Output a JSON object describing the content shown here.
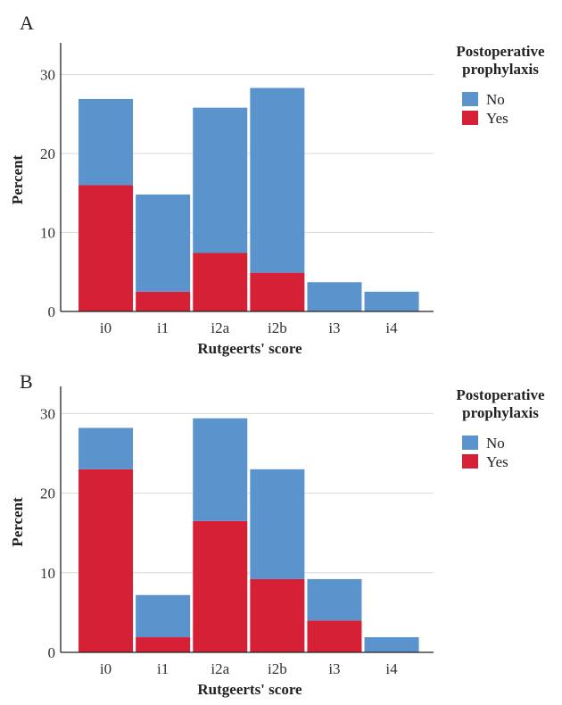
{
  "chart_data": [
    {
      "panel_label": "A",
      "type": "bar",
      "stacked": true,
      "categories": [
        "i0",
        "i1",
        "i2a",
        "i2b",
        "i3",
        "i4"
      ],
      "series": [
        {
          "name": "Yes",
          "color": "#d62035",
          "values": [
            16.0,
            2.5,
            7.4,
            4.9,
            0,
            0
          ]
        },
        {
          "name": "No",
          "color": "#5b93cc",
          "values": [
            10.9,
            12.3,
            18.4,
            23.4,
            3.7,
            2.5
          ]
        }
      ],
      "xlabel": "Rutgeerts' score",
      "ylabel": "Percent",
      "yticks": [
        0,
        10,
        20,
        30
      ],
      "ylim": [
        0,
        33
      ],
      "grid": true,
      "legend": {
        "title_line1": "Postoperative",
        "title_line2": "prophylaxis",
        "items": [
          "No",
          "Yes"
        ],
        "placement": "top-right outside"
      }
    },
    {
      "panel_label": "B",
      "type": "bar",
      "stacked": true,
      "categories": [
        "i0",
        "i1",
        "i2a",
        "i2b",
        "i3",
        "i4"
      ],
      "series": [
        {
          "name": "Yes",
          "color": "#d62035",
          "values": [
            23.0,
            1.9,
            16.5,
            9.2,
            4.0,
            0
          ]
        },
        {
          "name": "No",
          "color": "#5b93cc",
          "values": [
            5.2,
            5.3,
            12.9,
            13.8,
            5.2,
            1.9
          ]
        }
      ],
      "xlabel": "Rutgeerts' score",
      "ylabel": "Percent",
      "yticks": [
        0,
        10,
        20,
        30
      ],
      "ylim": [
        0,
        33
      ],
      "grid": true,
      "legend": {
        "title_line1": "Postoperative",
        "title_line2": "prophylaxis",
        "items": [
          "No",
          "Yes"
        ],
        "placement": "top-right outside"
      }
    }
  ]
}
